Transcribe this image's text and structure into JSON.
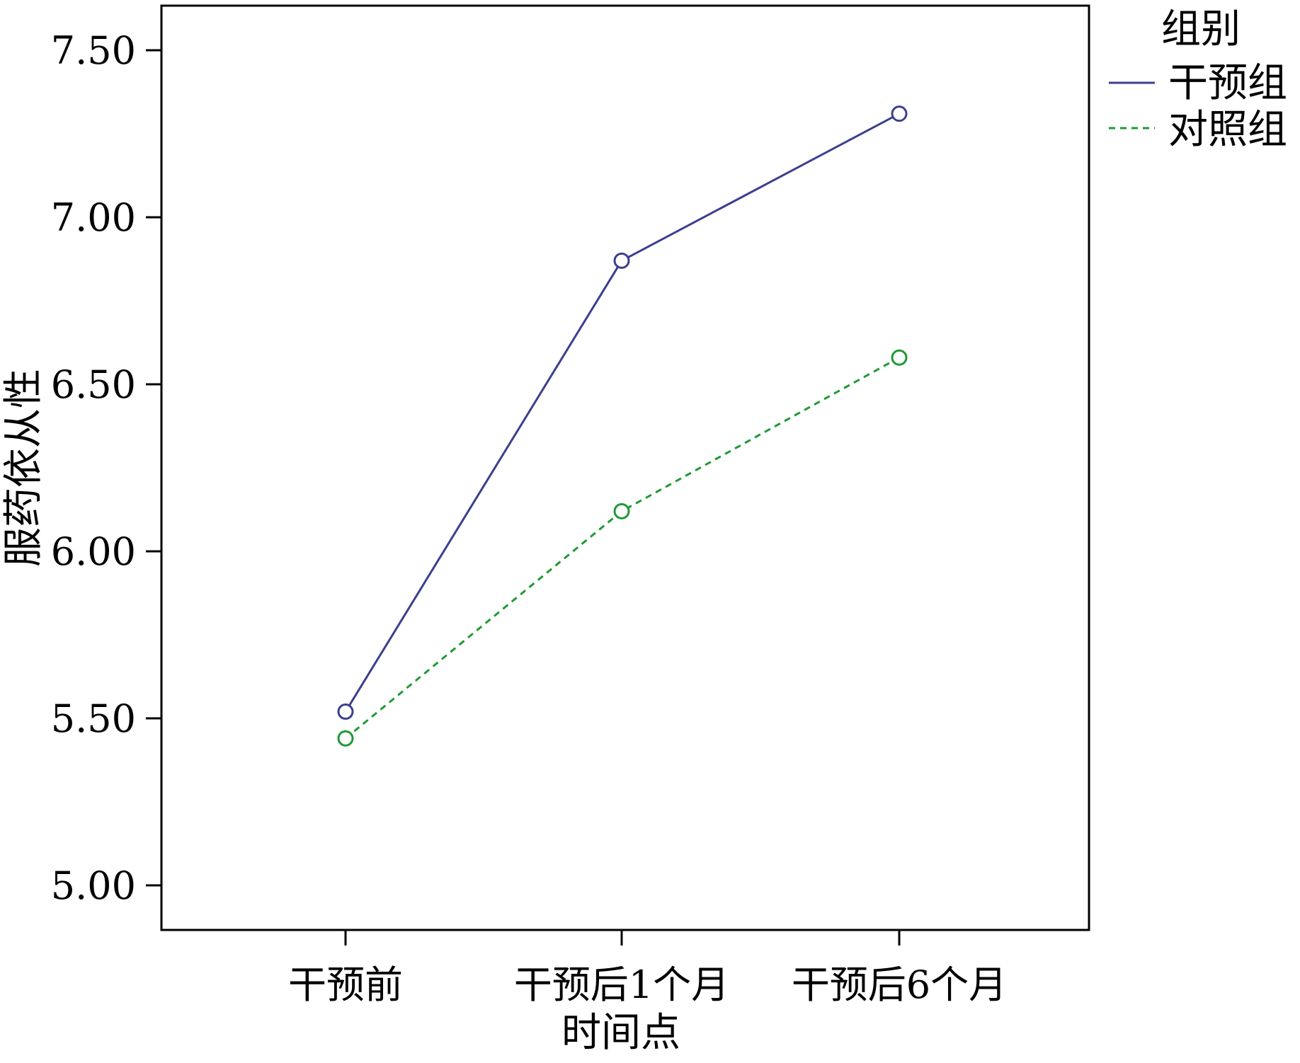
{
  "chart_data": {
    "type": "line",
    "title": "",
    "xlabel": "时间点",
    "ylabel": "服药依从性",
    "categories": [
      "干预前",
      "干预后1个月",
      "干预后6个月"
    ],
    "ylim": [
      5.0,
      7.5
    ],
    "yticks": [
      "5.00",
      "5.50",
      "6.00",
      "6.50",
      "7.00",
      "7.50"
    ],
    "grid": false,
    "legend": {
      "title": "组别",
      "placement": "top-right outside"
    },
    "series": [
      {
        "name": "干预组",
        "values": [
          5.52,
          6.87,
          7.31
        ],
        "color": "#3b3f8f",
        "line_style": "solid",
        "marker": "open-circle"
      },
      {
        "name": "对照组",
        "values": [
          5.44,
          6.12,
          6.58
        ],
        "color": "#1f9a35",
        "line_style": "dashed",
        "marker": "open-circle"
      }
    ]
  }
}
